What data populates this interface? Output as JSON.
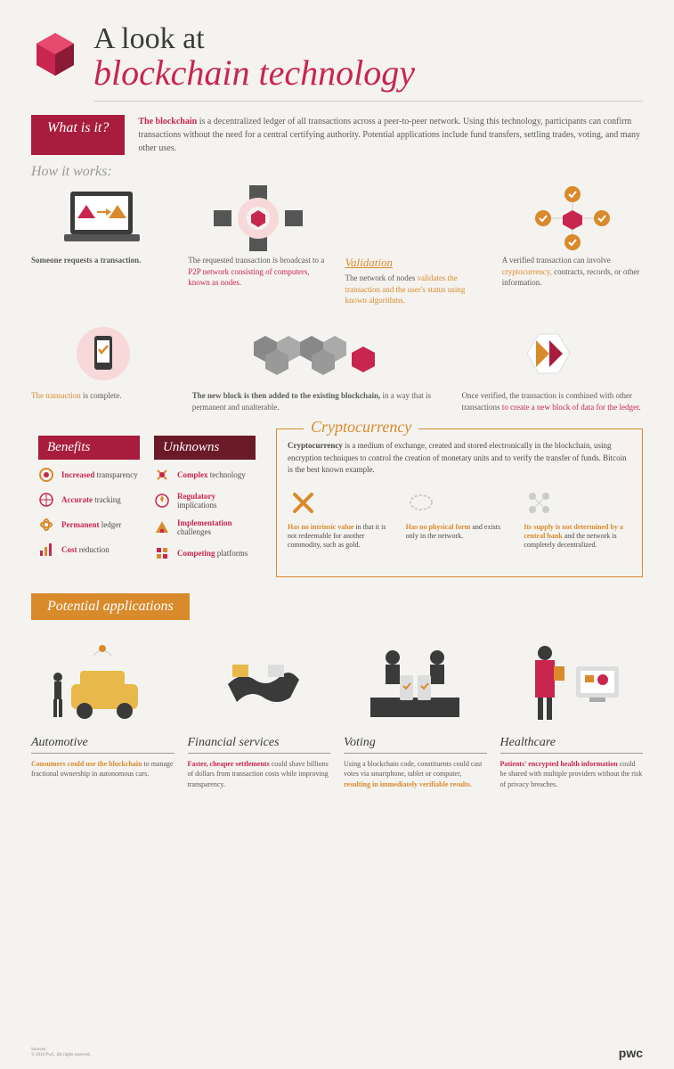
{
  "title": {
    "line1": "A look at",
    "line2": "blockchain technology"
  },
  "whatIsIt": {
    "label": "What is it?",
    "text_prefix": "The blockchain",
    "text": " is a decentralized ledger of all transactions across a peer-to-peer network. Using this technology, participants can confirm transactions without the need for a central certifying authority. Potential applications include fund transfers, settling trades, voting, and many other uses."
  },
  "howWorks": {
    "title": "How it works:",
    "steps_top": [
      {
        "bold": "Someone requests a transaction."
      },
      {
        "text": "The requested transaction is broadcast to a ",
        "red": "P2P network consisting of computers, known as nodes."
      },
      {
        "label": "Validation",
        "text": "The network of nodes ",
        "orange": "validates the transaction and the user's status using known algorithms."
      },
      {
        "text": "A verified transaction can involve ",
        "orange": "cryptocurrency,",
        "rest": " contracts, records, or other information."
      }
    ],
    "steps_bottom": [
      {
        "orange": "The transaction",
        "text": " is complete."
      },
      {
        "bold": "The new block is then added to the existing blockchain,",
        "text": " in a way that is permanent and unalterable."
      },
      {
        "text": "Once verified, the transaction is combined with other transactions ",
        "red": "to create a new block of data for the ledger."
      }
    ]
  },
  "benefits": {
    "title": "Benefits",
    "items": [
      {
        "red": "Increased",
        "text": " transparency"
      },
      {
        "red": "Accurate",
        "text": " tracking"
      },
      {
        "red": "Permanent",
        "text": " ledger"
      },
      {
        "red": "Cost",
        "text": " reduction"
      }
    ]
  },
  "unknowns": {
    "title": "Unknowns",
    "items": [
      {
        "red": "Complex",
        "text": " technology"
      },
      {
        "red": "Regulatory",
        "text": " implications"
      },
      {
        "red": "Implementation",
        "text": " challenges"
      },
      {
        "red": "Competing",
        "text": " platforms"
      }
    ]
  },
  "crypto": {
    "title": "Cryptocurrency",
    "desc_bold": "Cryptocurrency",
    "desc": " is a medium of exchange, created and stored electronically in the blockchain, using encryption techniques to control the creation of monetary units and to verify the transfer of funds. Bitcoin is the best known example.",
    "props": [
      {
        "hl": "Has no intrinsic value",
        "text": " in that it is not redeemable for another commodity, such as gold."
      },
      {
        "hl": "Has no physical form",
        "text": " and exists only in the network."
      },
      {
        "hl": "Its supply is not determined by a central bank",
        "text": " and the network is completely decentralized."
      }
    ]
  },
  "apps": {
    "label": "Potential applications",
    "items": [
      {
        "title": "Automotive",
        "hl": "Consumers could use the blockchain",
        "hlc": "o",
        "text": " to manage fractional ownership in autonomous cars."
      },
      {
        "title": "Financial services",
        "hl": "Faster, cheaper settlements",
        "hlc": "r",
        "text": " could shave billions of dollars from transaction costs while improving transparency."
      },
      {
        "title": "Voting",
        "text": "Using a blockchain code, constituents could cast votes via smartphone, tablet or computer, ",
        "hl": "resulting in immediately verifiable results.",
        "hlc": "o"
      },
      {
        "title": "Healthcare",
        "hl": "Patients' encrypted health information",
        "hlc": "r",
        "text": " could be shared with multiple providers without the risk of privacy breaches."
      }
    ]
  },
  "footer": {
    "brand": "pwc"
  },
  "colors": {
    "maroon": "#a81d3d",
    "rose": "#c8254f",
    "orange": "#d98a2b",
    "dark": "#3a3a3a",
    "gray": "#5a5a5a"
  }
}
